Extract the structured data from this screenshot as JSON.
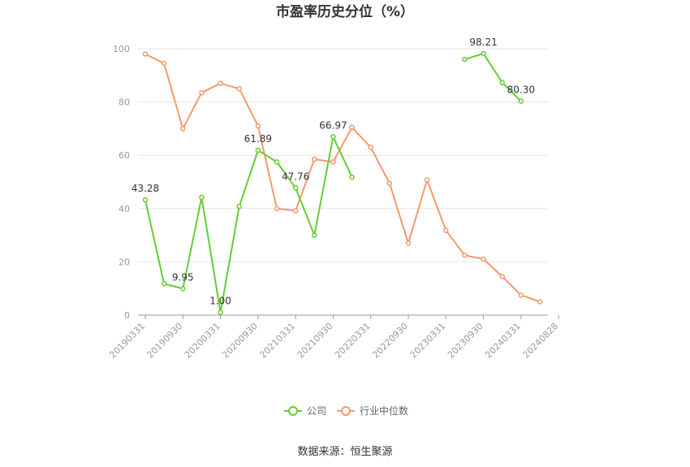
{
  "chart_data": {
    "type": "line",
    "title": "市盈率历史分位（%）",
    "source": "数据来源：恒生聚源",
    "ylim": [
      0,
      100
    ],
    "yticks": [
      0,
      20,
      40,
      60,
      80,
      100
    ],
    "xticks": [
      "20190331",
      "20190930",
      "20200331",
      "20200930",
      "20210331",
      "20210930",
      "20220331",
      "20220930",
      "20230331",
      "20230930",
      "20240331",
      "20240828"
    ],
    "grid": true,
    "legend_position": "bottom",
    "series": [
      {
        "name": "公司",
        "color": "#66cc33",
        "values": [
          43.28,
          11.8,
          9.95,
          44.2,
          1.0,
          40.8,
          61.89,
          57.5,
          47.76,
          30.0,
          66.97,
          51.8,
          null,
          null,
          null,
          null,
          null,
          96.0,
          98.21,
          87.3,
          80.3,
          null
        ],
        "labels": {
          "0": "43.28",
          "2": "9.95",
          "4": "1.00",
          "6": "61.89",
          "8": "47.76",
          "10": "66.97",
          "18": "98.21",
          "20": "80.30"
        }
      },
      {
        "name": "行业中位数",
        "color": "#f4996a",
        "values": [
          98.0,
          94.5,
          70.0,
          83.5,
          87.0,
          85.0,
          71.0,
          40.0,
          39.2,
          58.5,
          57.5,
          70.5,
          63.0,
          49.5,
          27.0,
          50.8,
          31.8,
          22.5,
          21.0,
          14.5,
          7.5,
          5.0
        ]
      }
    ]
  }
}
